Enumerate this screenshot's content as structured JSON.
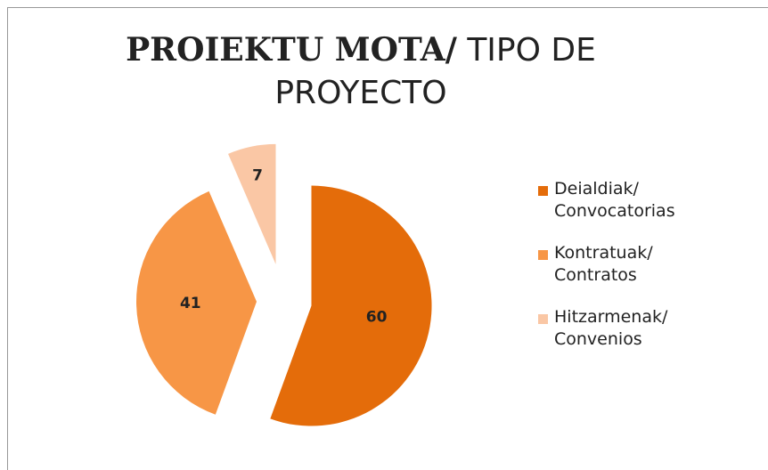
{
  "chart_data": {
    "type": "pie",
    "title": {
      "bold": "PROIEKTU MOTA/",
      "regular": "TIPO DE PROYECTO"
    },
    "categories": [
      "Deialdiak/ Convocatorias",
      "Kontratuak/ Contratos",
      "Hitzarmenak/ Convenios"
    ],
    "values": [
      60,
      41,
      7
    ],
    "colors": [
      "#e46c0a",
      "#f79646",
      "#fac7a5"
    ],
    "legend": "right"
  }
}
